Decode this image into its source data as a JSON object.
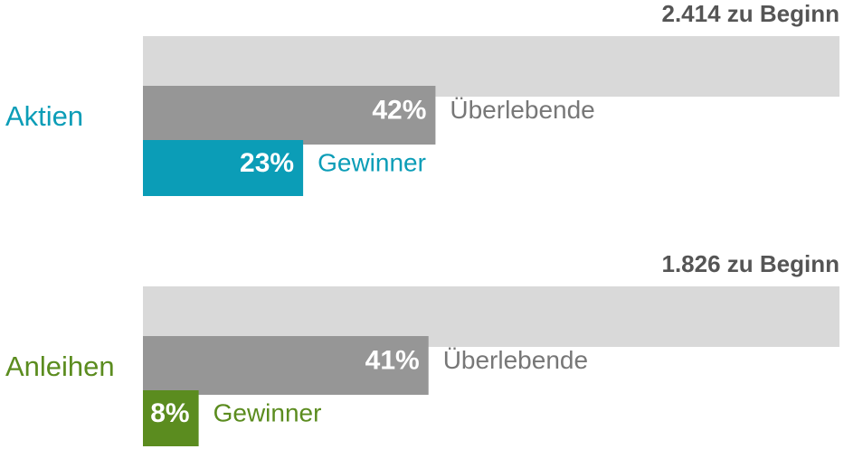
{
  "chart_data": {
    "type": "bar",
    "categories": [
      "Aktien",
      "Anleihen"
    ],
    "category_colors": [
      "#0b9db7",
      "#5b8c1f"
    ],
    "start_labels": [
      "2.414 zu Beginn",
      "1.826 zu Beginn"
    ],
    "xlim": [
      0,
      100
    ],
    "series": [
      {
        "values": [
          100,
          100
        ],
        "color": "#d9d9d9"
      },
      {
        "name": "Überlebende",
        "values": [
          42,
          41
        ],
        "value_labels": [
          "42%",
          "41%"
        ],
        "color": "#969696"
      },
      {
        "name": "Gewinner",
        "values": [
          23,
          8
        ],
        "value_labels": [
          "23%",
          "8%"
        ],
        "colors": [
          "#0b9db7",
          "#5b8c1f"
        ]
      }
    ]
  }
}
